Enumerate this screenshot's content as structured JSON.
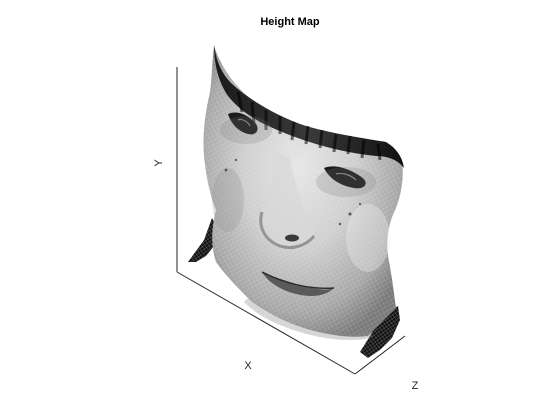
{
  "chart_data": {
    "type": "surface",
    "title": "Height Map",
    "xlabel": "X",
    "ylabel": "Y",
    "zlabel": "Z",
    "colormap": "grayscale",
    "mesh_edges": "white",
    "view": "3-D perspective, rotated",
    "grid": false,
    "subject": "human face surface"
  }
}
